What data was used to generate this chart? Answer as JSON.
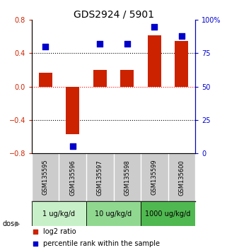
{
  "title": "GDS2924 / 5901",
  "samples": [
    "GSM135595",
    "GSM135596",
    "GSM135597",
    "GSM135598",
    "GSM135599",
    "GSM135600"
  ],
  "log2_ratio": [
    0.17,
    -0.57,
    0.2,
    0.2,
    0.62,
    0.55
  ],
  "percentile_rank": [
    80,
    5,
    82,
    82,
    95,
    88
  ],
  "ylim_left": [
    -0.8,
    0.8
  ],
  "ylim_right": [
    0,
    100
  ],
  "yticks_left": [
    -0.8,
    -0.4,
    0.0,
    0.4,
    0.8
  ],
  "yticks_right": [
    0,
    25,
    50,
    75,
    100
  ],
  "ytick_labels_right": [
    "0",
    "25",
    "50",
    "75",
    "100%"
  ],
  "dose_groups": [
    {
      "label": "1 ug/kg/d",
      "cols": [
        0,
        1
      ],
      "color": "#c8f0c8"
    },
    {
      "label": "10 ug/kg/d",
      "cols": [
        2,
        3
      ],
      "color": "#90d890"
    },
    {
      "label": "1000 ug/kg/d",
      "cols": [
        4,
        5
      ],
      "color": "#50b850"
    }
  ],
  "bar_color": "#cc2200",
  "square_color": "#0000cc",
  "bar_width": 0.5,
  "square_size": 28,
  "legend_red_label": "log2 ratio",
  "legend_blue_label": "percentile rank within the sample",
  "dose_label": "dose",
  "background_plot": "#ffffff",
  "background_sample_row": "#cccccc",
  "title_fontsize": 10,
  "tick_fontsize": 7,
  "sample_fontsize": 6,
  "dose_fontsize": 7,
  "legend_fontsize": 7
}
